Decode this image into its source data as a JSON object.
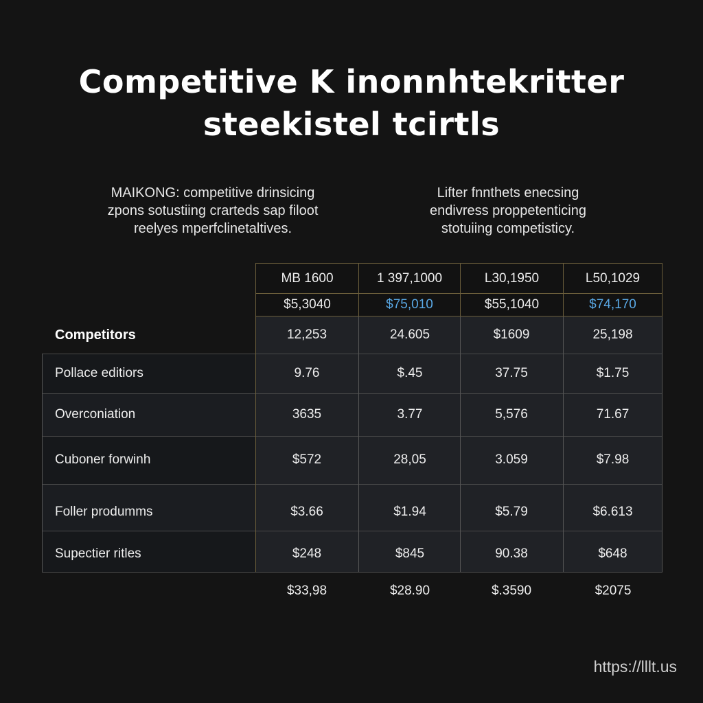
{
  "title": {
    "line1": "Competitive K inonnhtekritter",
    "line2": "steekistel tcirtls"
  },
  "intro_left": {
    "lines": [
      "MAIKONG: competitive drinsicing",
      "zpons sotustiing crarteds sap filoot",
      "reelyes mperfclinetaltives."
    ]
  },
  "intro_right": {
    "lines": [
      "Lifter fnnthets enecsing",
      "endivress proppetenticing",
      "stotuiing competisticy."
    ]
  },
  "table": {
    "header_row1": [
      "MB 1600",
      "1 397,1000",
      "L30,1950",
      "L50,1029"
    ],
    "header_row2": [
      "$5,3040",
      "$75,010",
      "$55,1040",
      "$74,170"
    ],
    "competitors_label": "Competitors",
    "competitors_values": [
      "12,253",
      "24.605",
      "$1609",
      "25,198"
    ],
    "rows": [
      {
        "label": "Pollace editiors",
        "values": [
          "9.76",
          "$.45",
          "37.75",
          "$1.75"
        ]
      },
      {
        "label": "Overconiation",
        "values": [
          "3635",
          "3.77",
          "5,576",
          "71.67"
        ]
      },
      {
        "label": "Cuboner forwinh",
        "values": [
          "$572",
          "28,05",
          "3.059",
          "$7.98"
        ]
      },
      {
        "label": "Foller produmms",
        "values": [
          "$3.66",
          "$1.94",
          "$5.79",
          "$6.613"
        ]
      },
      {
        "label": "Supectier ritles",
        "values": [
          "$248",
          "$845",
          "90.38",
          "$648"
        ]
      }
    ],
    "totals": [
      "$33,98",
      "$28.90",
      "$.3590",
      "$2075"
    ]
  },
  "footer": {
    "url": "https://lllt.us"
  },
  "colors": {
    "background": "#141414",
    "accent": "#5aa9e6",
    "grid_gold": "#6b5e3b",
    "text": "#eeeeee"
  }
}
